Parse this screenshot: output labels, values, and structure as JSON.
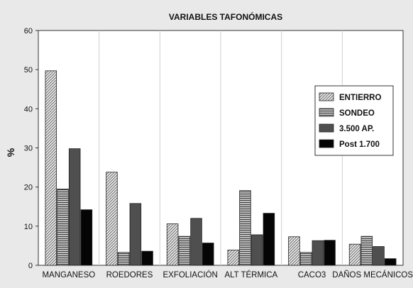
{
  "chart_data": {
    "type": "bar",
    "title": "VARIABLES TAFONÓMICAS",
    "xlabel": "",
    "ylabel": "%",
    "ylim": [
      0,
      60
    ],
    "yticks": [
      0,
      10,
      20,
      30,
      40,
      50,
      60
    ],
    "grid": "vertical",
    "legend_position": "right",
    "categories": [
      "MANGANESO",
      "ROEDORES",
      "EXFOLIACIÓN",
      "ALT TÉRMICA",
      "CACO3",
      "DAÑOS MECÁNICOS"
    ],
    "series": [
      {
        "name": "ENTIERRO",
        "values": [
          49.7,
          23.8,
          10.6,
          3.9,
          7.3,
          5.4
        ],
        "pattern": "diagonal",
        "color": "#d0d0d0"
      },
      {
        "name": "SONDEO",
        "values": [
          19.5,
          3.3,
          7.4,
          19.1,
          3.3,
          7.4
        ],
        "pattern": "horizontal",
        "color": "#9a9a9a"
      },
      {
        "name": "3.500 AP.",
        "values": [
          29.8,
          15.8,
          12.0,
          7.8,
          6.3,
          4.8
        ],
        "pattern": "solid",
        "color": "#4f4f4f"
      },
      {
        "name": "Post 1.700",
        "values": [
          14.2,
          3.6,
          5.7,
          13.3,
          6.4,
          1.7
        ],
        "pattern": "solid",
        "color": "#050505"
      }
    ]
  }
}
